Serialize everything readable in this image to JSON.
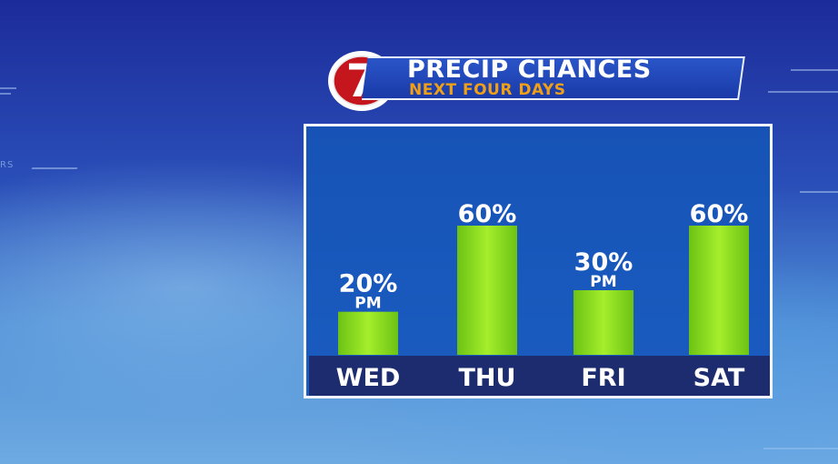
{
  "header": {
    "station_number": "7",
    "title": "PRECIP CHANCES",
    "subtitle": "NEXT FOUR DAYS"
  },
  "colors": {
    "bar": "#8edc1f",
    "panel": "#1a58bc",
    "day_band": "#1c2c6e",
    "subtitle": "#f0a017",
    "logo_red": "#c4161c"
  },
  "chart_data": {
    "type": "bar",
    "categories": [
      "WED",
      "THU",
      "FRI",
      "SAT"
    ],
    "values": [
      20,
      60,
      30,
      60
    ],
    "value_labels": [
      "20%",
      "60%",
      "30%",
      "60%"
    ],
    "sublabels": [
      "PM",
      "",
      "PM",
      ""
    ],
    "ylim": [
      0,
      100
    ],
    "grid": false,
    "title": "PRECIP CHANCES",
    "subtitle": "NEXT FOUR DAYS"
  }
}
